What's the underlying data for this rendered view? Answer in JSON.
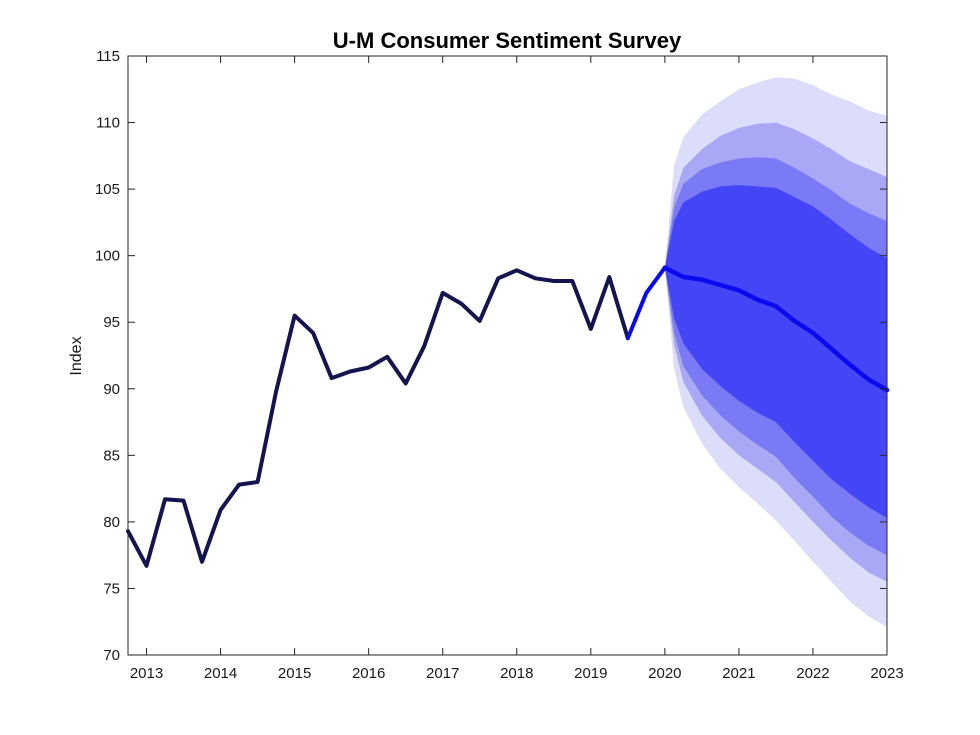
{
  "chart_data": {
    "type": "line",
    "title": "U-M Consumer Sentiment Survey",
    "xlabel": "",
    "ylabel": "Index",
    "xlim": [
      2012.75,
      2023.0
    ],
    "ylim": [
      70,
      115
    ],
    "x_ticks": [
      2013,
      2014,
      2015,
      2016,
      2017,
      2018,
      2019,
      2020,
      2021,
      2022,
      2023
    ],
    "x_tick_labels": [
      "2013",
      "2014",
      "2015",
      "2016",
      "2017",
      "2018",
      "2019",
      "2020",
      "2021",
      "2022",
      "2023"
    ],
    "y_ticks": [
      70,
      75,
      80,
      85,
      90,
      95,
      100,
      105,
      110,
      115
    ],
    "y_tick_labels": [
      "70",
      "75",
      "80",
      "85",
      "90",
      "95",
      "100",
      "105",
      "110",
      "115"
    ],
    "grid": false,
    "colors": {
      "history": "#141450",
      "forecast": "#0a0af0",
      "band_inner": "#4545f8",
      "band_mid": "#7a7af6",
      "band_outer": "#a8a8f7",
      "band_outermost": "#dcdcfb"
    },
    "series": [
      {
        "x": [
          2012.75,
          2013.0,
          2013.25,
          2013.5,
          2013.75,
          2014.0,
          2014.25,
          2014.5,
          2014.75,
          2015.0,
          2015.25,
          2015.5,
          2015.75,
          2016.0,
          2016.25,
          2016.5,
          2016.75,
          2017.0,
          2017.25,
          2017.5,
          2017.75,
          2018.0,
          2018.25,
          2018.5,
          2018.75,
          2019.0,
          2019.25,
          2019.5
        ],
        "values": [
          79.3,
          76.7,
          81.7,
          81.6,
          77.0,
          80.9,
          82.8,
          83.0,
          89.8,
          95.5,
          94.2,
          90.8,
          91.3,
          91.6,
          92.4,
          90.4,
          93.2,
          97.2,
          96.4,
          95.1,
          98.3,
          98.9,
          98.3,
          98.1,
          98.1,
          94.5,
          98.4,
          93.8
        ]
      },
      {
        "x": [
          2019.5,
          2019.75,
          2020.0
        ],
        "values": [
          93.8,
          97.2,
          99.1
        ]
      },
      {
        "x": [
          2020.0,
          2020.25,
          2020.5,
          2020.75,
          2021.0,
          2021.25,
          2021.5,
          2021.75,
          2022.0,
          2022.25,
          2022.5,
          2022.75,
          2023.0
        ],
        "values": [
          99.1,
          98.4,
          98.2,
          97.8,
          97.4,
          96.7,
          96.2,
          95.1,
          94.2,
          93.0,
          91.8,
          90.7,
          89.9
        ]
      }
    ],
    "fan_bands": [
      {
        "x": [
          2020.0,
          2020.125,
          2020.25,
          2020.5,
          2020.75,
          2021.0,
          2021.25,
          2021.5,
          2021.75,
          2022.0,
          2022.25,
          2022.5,
          2022.75,
          2023.0
        ],
        "upper": [
          99.1,
          102.6,
          104.0,
          104.8,
          105.2,
          105.3,
          105.2,
          105.1,
          104.4,
          103.7,
          102.7,
          101.6,
          100.6,
          99.8
        ],
        "lower": [
          99.1,
          95.3,
          93.4,
          91.5,
          90.2,
          89.1,
          88.2,
          87.5,
          86.0,
          84.6,
          83.2,
          82.1,
          81.1,
          80.3
        ]
      },
      {
        "x": [
          2020.0,
          2020.125,
          2020.25,
          2020.5,
          2020.75,
          2021.0,
          2021.25,
          2021.5,
          2021.75,
          2022.0,
          2022.25,
          2022.5,
          2022.75,
          2023.0
        ],
        "upper": [
          99.1,
          103.6,
          105.4,
          106.5,
          107.0,
          107.3,
          107.4,
          107.3,
          106.6,
          105.8,
          104.9,
          103.9,
          103.2,
          102.6
        ],
        "lower": [
          99.1,
          94.2,
          91.7,
          89.5,
          88.0,
          86.8,
          85.8,
          84.9,
          83.3,
          81.9,
          80.4,
          79.2,
          78.2,
          77.5
        ]
      },
      {
        "x": [
          2020.0,
          2020.125,
          2020.25,
          2020.5,
          2020.75,
          2021.0,
          2021.25,
          2021.5,
          2021.75,
          2022.0,
          2022.25,
          2022.5,
          2022.75,
          2023.0
        ],
        "upper": [
          99.1,
          104.5,
          106.6,
          108.0,
          109.0,
          109.6,
          109.9,
          110.0,
          109.5,
          108.8,
          108.0,
          107.1,
          106.5,
          105.9
        ],
        "lower": [
          99.1,
          93.3,
          90.5,
          88.0,
          86.3,
          85.0,
          84.0,
          83.0,
          81.5,
          80.0,
          78.6,
          77.3,
          76.2,
          75.5
        ]
      },
      {
        "x": [
          2020.0,
          2020.125,
          2020.25,
          2020.5,
          2020.75,
          2021.0,
          2021.25,
          2021.5,
          2021.75,
          2022.0,
          2022.25,
          2022.5,
          2022.75,
          2023.0
        ],
        "upper": [
          99.1,
          106.8,
          108.9,
          110.6,
          111.6,
          112.5,
          113.0,
          113.4,
          113.3,
          112.8,
          112.1,
          111.6,
          110.9,
          110.5
        ],
        "lower": [
          99.1,
          91.5,
          88.6,
          85.9,
          84.0,
          82.6,
          81.4,
          80.1,
          78.6,
          77.0,
          75.5,
          74.0,
          72.9,
          72.1
        ]
      }
    ]
  }
}
